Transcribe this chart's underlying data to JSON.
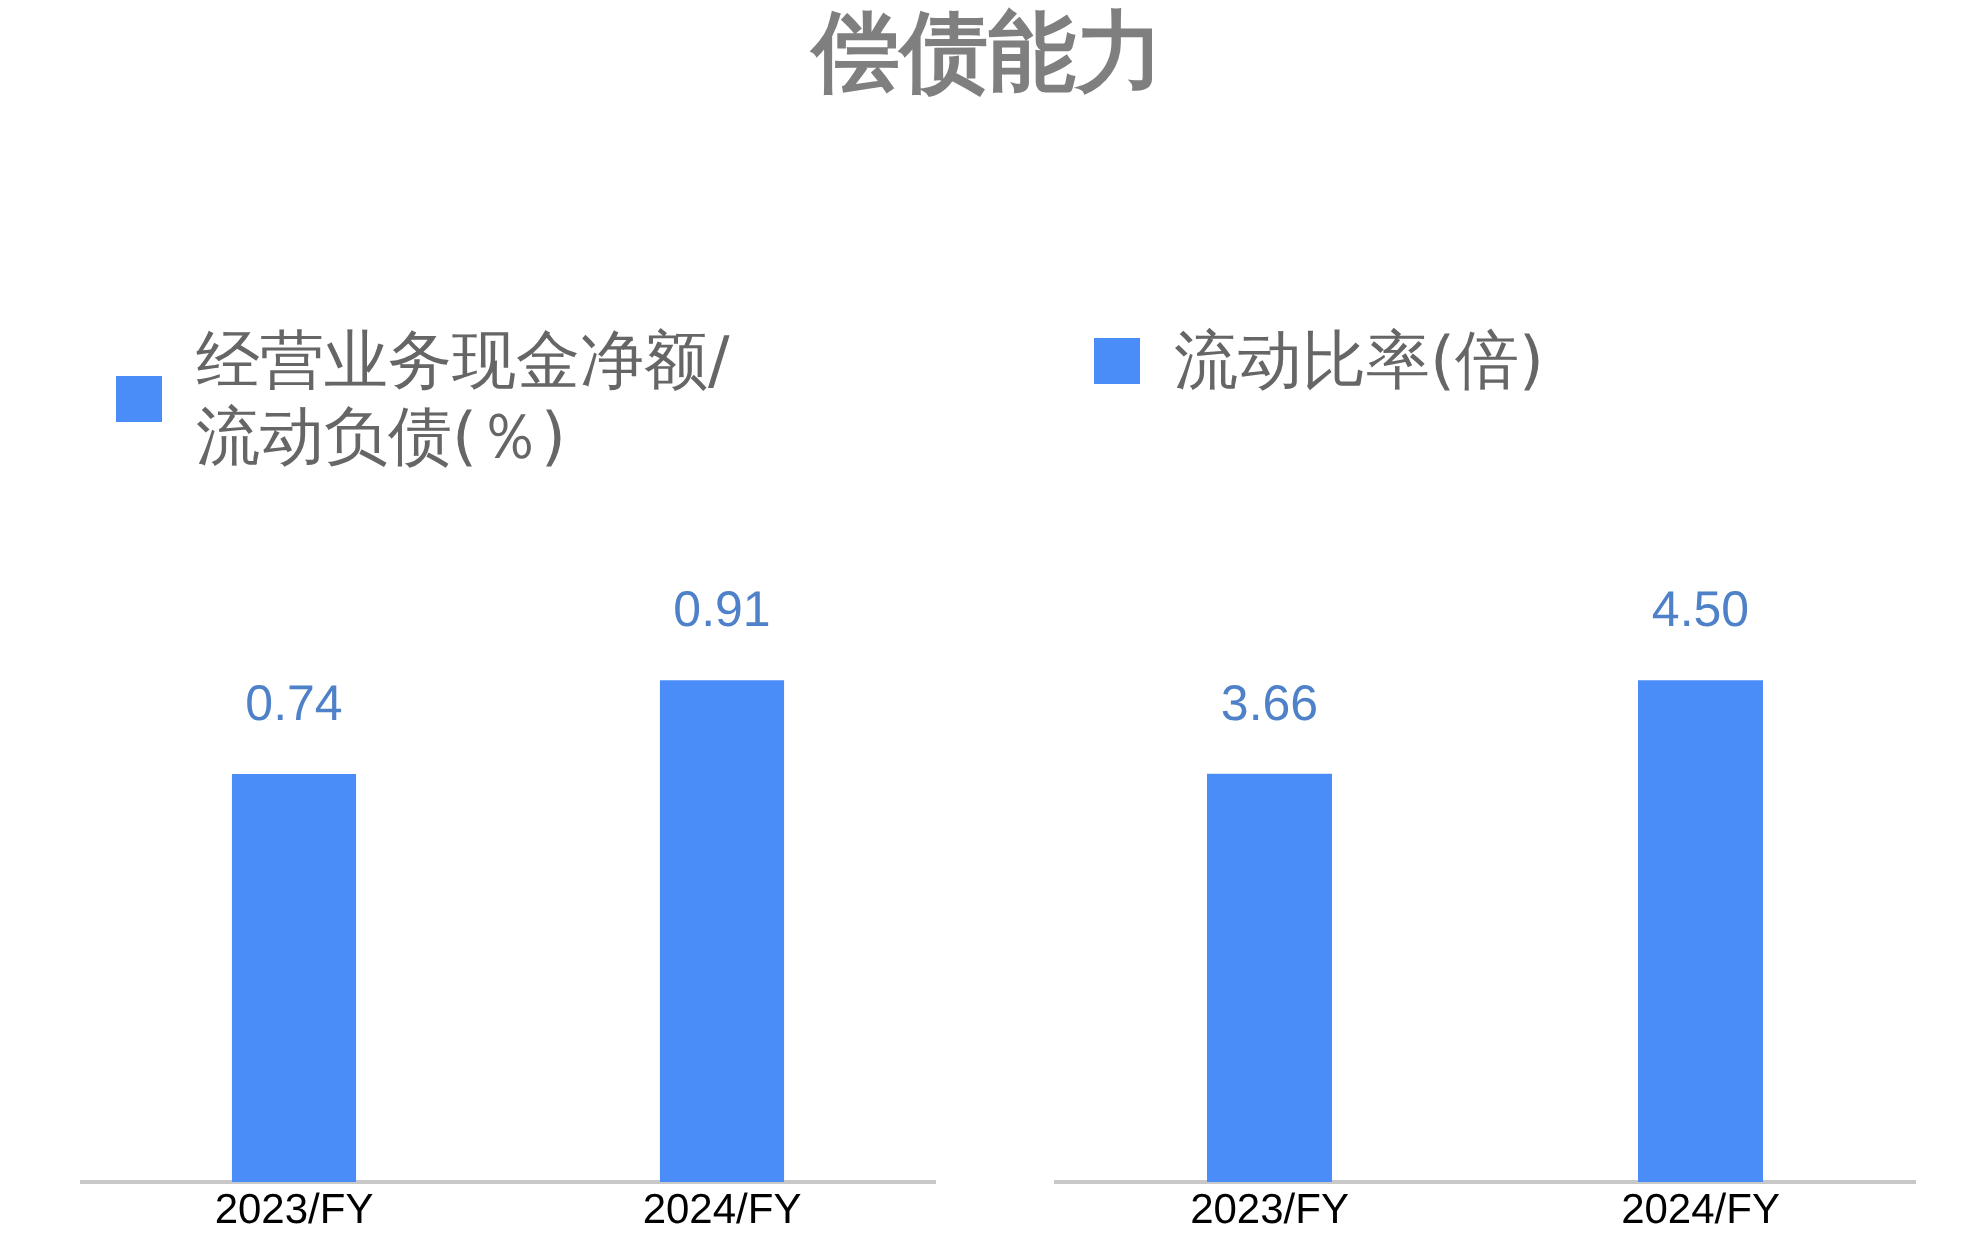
{
  "chart_data": [
    {
      "type": "bar",
      "title": "偿债能力",
      "categories": [
        "2023/FY",
        "2024/FY"
      ],
      "series": [
        {
          "name": "经营业务现金净额/流动负债(％)",
          "color": "#4b8df8",
          "values": [
            0.74,
            0.91
          ]
        }
      ],
      "data_labels": true,
      "legend": "top left"
    },
    {
      "type": "bar",
      "categories": [
        "2023/FY",
        "2024/FY"
      ],
      "series": [
        {
          "name": "流动比率(倍)",
          "color": "#4b8df8",
          "values": [
            3.66,
            4.5
          ],
          "value_labels": [
            "3.66",
            "4.50"
          ]
        }
      ],
      "legend": "top left"
    }
  ]
}
